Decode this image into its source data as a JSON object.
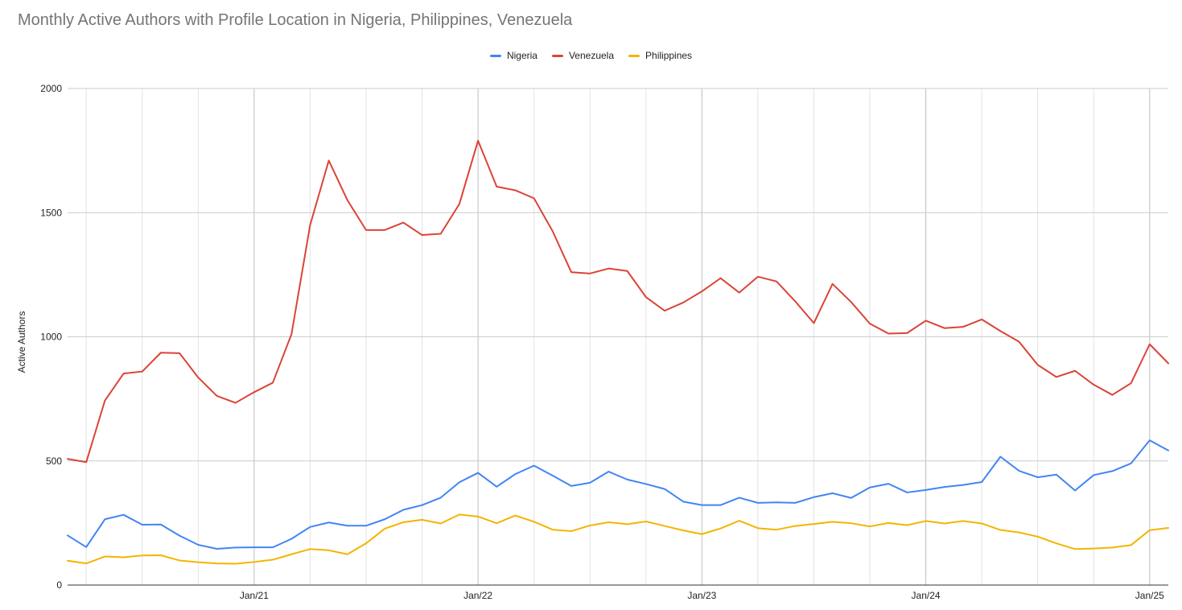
{
  "chart_data": {
    "type": "line",
    "title": "Monthly Active Authors with Profile Location in Nigeria, Philippines, Venezuela",
    "ylabel": "Active Authors",
    "xlabel": "",
    "ylim": [
      0,
      2000
    ],
    "yticks": [
      "0",
      "500",
      "1000",
      "1500",
      "2000"
    ],
    "yticks_values": [
      0,
      500,
      1000,
      1500,
      2000
    ],
    "x_ticks": [
      {
        "label": "Jan/21",
        "index": 10
      },
      {
        "label": "Jan/22",
        "index": 22
      },
      {
        "label": "Jan/23",
        "index": 34
      },
      {
        "label": "Jan/24",
        "index": 46
      },
      {
        "label": "Jan/25",
        "index": 58
      }
    ],
    "x_start": "2020-03",
    "x_end": "2025-02",
    "grid": true,
    "legend_position": "top-center",
    "series": [
      {
        "name": "Nigeria",
        "color": "#4285F4",
        "values": [
          200,
          153,
          265,
          283,
          243,
          244,
          199,
          162,
          146,
          151,
          152,
          152,
          186,
          234,
          252,
          239,
          239,
          265,
          303,
          322,
          352,
          414,
          452,
          396,
          447,
          481,
          441,
          399,
          412,
          457,
          425,
          407,
          387,
          336,
          322,
          322,
          352,
          331,
          333,
          331,
          354,
          370,
          351,
          393,
          408,
          373,
          383,
          395,
          403,
          415,
          517,
          460,
          434,
          445,
          381,
          443,
          459,
          490,
          583,
          542
        ]
      },
      {
        "name": "Venezuela",
        "color": "#DB4437",
        "values": [
          508,
          495,
          743,
          852,
          860,
          936,
          934,
          836,
          762,
          734,
          777,
          815,
          1010,
          1450,
          1710,
          1550,
          1430,
          1430,
          1460,
          1410,
          1415,
          1535,
          1790,
          1605,
          1590,
          1558,
          1425,
          1260,
          1255,
          1275,
          1265,
          1160,
          1105,
          1138,
          1183,
          1236,
          1178,
          1242,
          1223,
          1143,
          1055,
          1213,
          1140,
          1053,
          1013,
          1015,
          1065,
          1035,
          1040,
          1070,
          1023,
          980,
          887,
          838,
          863,
          807,
          766,
          813,
          970,
          893
        ]
      },
      {
        "name": "Philippines",
        "color": "#F4B400",
        "values": [
          98,
          87,
          115,
          112,
          119,
          120,
          99,
          92,
          87,
          86,
          93,
          102,
          124,
          145,
          140,
          124,
          168,
          227,
          253,
          263,
          248,
          284,
          276,
          249,
          280,
          255,
          223,
          217,
          240,
          253,
          245,
          256,
          238,
          220,
          205,
          228,
          259,
          229,
          223,
          238,
          246,
          255,
          249,
          236,
          250,
          241,
          258,
          248,
          258,
          248,
          222,
          212,
          195,
          168,
          145,
          147,
          151,
          161,
          221,
          230
        ]
      }
    ]
  }
}
